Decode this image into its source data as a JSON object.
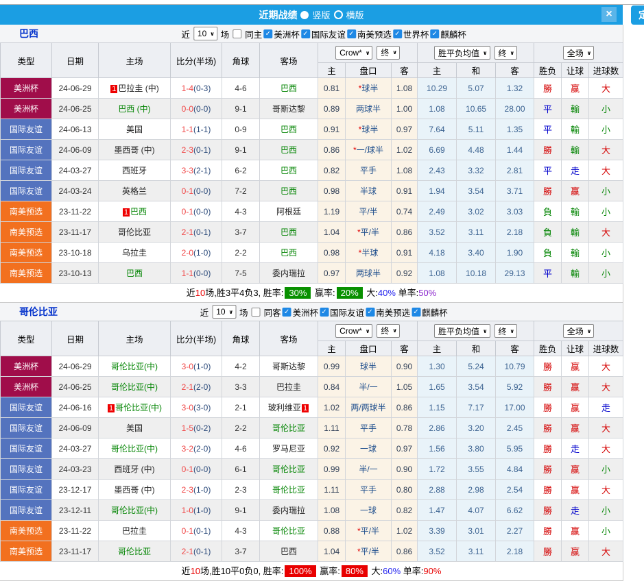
{
  "title_bar": {
    "title": "近期战绩",
    "radio_vertical": "竖版",
    "radio_horizontal": "横版",
    "close": "×"
  },
  "pin_button": "定",
  "filter": {
    "near": "近",
    "count": "10",
    "games": "场"
  },
  "table": {
    "col_headers": [
      "类型",
      "日期",
      "主场",
      "比分(半场)",
      "角球",
      "客场"
    ],
    "sub_headers": [
      "主",
      "盘口",
      "客",
      "主",
      "和",
      "客",
      "胜负",
      "让球",
      "进球数"
    ],
    "selects": {
      "company": "Crow*",
      "final1": "终",
      "avg": "胜平负均值",
      "final2": "终",
      "scope": "全场"
    }
  },
  "colors": {
    "type": {
      "美洲杯": "#a00d4a",
      "国际友谊": "#5473be",
      "南美预选": "#f2701f"
    },
    "accent_blue": "#1b9ee3"
  },
  "sections": [
    {
      "team": "巴西",
      "same_label": "同主",
      "cups": [
        "美洲杯",
        "国际友谊",
        "南美预选",
        "世界杯",
        "麒麟杯"
      ],
      "rows": [
        {
          "type": "美洲杯",
          "date": "24-06-29",
          "home": "巴拉圭 (中)",
          "hg": false,
          "hr": "before",
          "score": "1-4",
          "half": "(0-3)",
          "cor": "4-6",
          "away": "巴西",
          "ag": true,
          "ar": null,
          "h": "0.81",
          "star": true,
          "hcp": "球半",
          "a": "1.08",
          "av": [
            "10.29",
            "5.07",
            "1.32"
          ],
          "res": [
            "勝",
            "r"
          ],
          "bet": [
            "赢",
            "r"
          ],
          "big": [
            "大",
            "r"
          ]
        },
        {
          "type": "美洲杯",
          "date": "24-06-25",
          "home": "巴西 (中)",
          "hg": true,
          "hr": null,
          "score": "0-0",
          "half": "(0-0)",
          "cor": "9-1",
          "away": "哥斯达黎",
          "ag": false,
          "ar": null,
          "h": "0.89",
          "star": false,
          "hcp": "两球半",
          "a": "1.00",
          "av": [
            "1.08",
            "10.65",
            "28.00"
          ],
          "res": [
            "平",
            "b"
          ],
          "bet": [
            "輸",
            "g"
          ],
          "big": [
            "小",
            "g"
          ]
        },
        {
          "type": "国际友谊",
          "date": "24-06-13",
          "home": "美国",
          "hg": false,
          "hr": null,
          "score": "1-1",
          "half": "(1-1)",
          "cor": "0-9",
          "away": "巴西",
          "ag": true,
          "ar": null,
          "h": "0.91",
          "star": true,
          "hcp": "球半",
          "a": "0.97",
          "av": [
            "7.64",
            "5.11",
            "1.35"
          ],
          "res": [
            "平",
            "b"
          ],
          "bet": [
            "輸",
            "g"
          ],
          "big": [
            "小",
            "g"
          ]
        },
        {
          "type": "国际友谊",
          "date": "24-06-09",
          "home": "墨西哥 (中)",
          "hg": false,
          "hr": null,
          "score": "2-3",
          "half": "(0-1)",
          "cor": "9-1",
          "away": "巴西",
          "ag": true,
          "ar": null,
          "h": "0.86",
          "star": true,
          "hcp": "一/球半",
          "a": "1.02",
          "av": [
            "6.69",
            "4.48",
            "1.44"
          ],
          "res": [
            "勝",
            "r"
          ],
          "bet": [
            "輸",
            "g"
          ],
          "big": [
            "大",
            "r"
          ]
        },
        {
          "type": "国际友谊",
          "date": "24-03-27",
          "home": "西班牙",
          "hg": false,
          "hr": null,
          "score": "3-3",
          "half": "(2-1)",
          "cor": "6-2",
          "away": "巴西",
          "ag": true,
          "ar": null,
          "h": "0.82",
          "star": false,
          "hcp": "平手",
          "a": "1.08",
          "av": [
            "2.43",
            "3.32",
            "2.81"
          ],
          "res": [
            "平",
            "b"
          ],
          "bet": [
            "走",
            "b"
          ],
          "big": [
            "大",
            "r"
          ]
        },
        {
          "type": "国际友谊",
          "date": "24-03-24",
          "home": "英格兰",
          "hg": false,
          "hr": null,
          "score": "0-1",
          "half": "(0-0)",
          "cor": "7-2",
          "away": "巴西",
          "ag": true,
          "ar": null,
          "h": "0.98",
          "star": false,
          "hcp": "半球",
          "a": "0.91",
          "av": [
            "1.94",
            "3.54",
            "3.71"
          ],
          "res": [
            "勝",
            "r"
          ],
          "bet": [
            "赢",
            "r"
          ],
          "big": [
            "小",
            "g"
          ]
        },
        {
          "type": "南美预选",
          "date": "23-11-22",
          "home": "巴西",
          "hg": true,
          "hr": "before",
          "score": "0-1",
          "half": "(0-0)",
          "cor": "4-3",
          "away": "阿根廷",
          "ag": false,
          "ar": null,
          "h": "1.19",
          "star": false,
          "hcp": "平/半",
          "a": "0.74",
          "av": [
            "2.49",
            "3.02",
            "3.03"
          ],
          "res": [
            "負",
            "g"
          ],
          "bet": [
            "輸",
            "g"
          ],
          "big": [
            "小",
            "g"
          ]
        },
        {
          "type": "南美预选",
          "date": "23-11-17",
          "home": "哥伦比亚",
          "hg": false,
          "hr": null,
          "score": "2-1",
          "half": "(0-1)",
          "cor": "3-7",
          "away": "巴西",
          "ag": true,
          "ar": null,
          "h": "1.04",
          "star": true,
          "hcp": "平/半",
          "a": "0.86",
          "av": [
            "3.52",
            "3.11",
            "2.18"
          ],
          "res": [
            "負",
            "g"
          ],
          "bet": [
            "輸",
            "g"
          ],
          "big": [
            "大",
            "r"
          ]
        },
        {
          "type": "南美预选",
          "date": "23-10-18",
          "home": "乌拉圭",
          "hg": false,
          "hr": null,
          "score": "2-0",
          "half": "(1-0)",
          "cor": "2-2",
          "away": "巴西",
          "ag": true,
          "ar": null,
          "h": "0.98",
          "star": true,
          "hcp": "半球",
          "a": "0.91",
          "av": [
            "4.18",
            "3.40",
            "1.90"
          ],
          "res": [
            "負",
            "g"
          ],
          "bet": [
            "輸",
            "g"
          ],
          "big": [
            "小",
            "g"
          ]
        },
        {
          "type": "南美预选",
          "date": "23-10-13",
          "home": "巴西",
          "hg": true,
          "hr": null,
          "score": "1-1",
          "half": "(0-0)",
          "cor": "7-5",
          "away": "委内瑞拉",
          "ag": false,
          "ar": null,
          "h": "0.97",
          "star": false,
          "hcp": "两球半",
          "a": "0.92",
          "av": [
            "1.08",
            "10.18",
            "29.13"
          ],
          "res": [
            "平",
            "b"
          ],
          "bet": [
            "輸",
            "g"
          ],
          "big": [
            "小",
            "g"
          ]
        }
      ],
      "summary": [
        {
          "t": "近"
        },
        {
          "t": "10",
          "c": "e"
        },
        {
          "t": "场,胜3平4负3, 胜率:"
        },
        {
          "t": "30%",
          "badge": "g"
        },
        {
          "t": " 赢率:"
        },
        {
          "t": "20%",
          "badge": "g"
        },
        {
          "t": " 大:"
        },
        {
          "t": "40%",
          "c": "bl"
        },
        {
          "t": " 单率:"
        },
        {
          "t": "50%",
          "c": "p"
        }
      ]
    },
    {
      "team": "哥伦比亚",
      "same_label": "同客",
      "cups": [
        "美洲杯",
        "国际友谊",
        "南美预选",
        "麒麟杯"
      ],
      "rows": [
        {
          "type": "美洲杯",
          "date": "24-06-29",
          "home": "哥伦比亚(中)",
          "hg": true,
          "hr": null,
          "score": "3-0",
          "half": "(1-0)",
          "cor": "4-2",
          "away": "哥斯达黎",
          "ag": false,
          "ar": null,
          "h": "0.99",
          "star": false,
          "hcp": "球半",
          "a": "0.90",
          "av": [
            "1.30",
            "5.24",
            "10.79"
          ],
          "res": [
            "勝",
            "r"
          ],
          "bet": [
            "赢",
            "r"
          ],
          "big": [
            "大",
            "r"
          ]
        },
        {
          "type": "美洲杯",
          "date": "24-06-25",
          "home": "哥伦比亚(中)",
          "hg": true,
          "hr": null,
          "score": "2-1",
          "half": "(2-0)",
          "cor": "3-3",
          "away": "巴拉圭",
          "ag": false,
          "ar": null,
          "h": "0.84",
          "star": false,
          "hcp": "半/一",
          "a": "1.05",
          "av": [
            "1.65",
            "3.54",
            "5.92"
          ],
          "res": [
            "勝",
            "r"
          ],
          "bet": [
            "赢",
            "r"
          ],
          "big": [
            "大",
            "r"
          ]
        },
        {
          "type": "国际友谊",
          "date": "24-06-16",
          "home": "哥伦比亚(中)",
          "hg": true,
          "hr": "before",
          "score": "3-0",
          "half": "(3-0)",
          "cor": "2-1",
          "away": "玻利维亚",
          "ag": false,
          "ar": "after",
          "h": "1.02",
          "star": false,
          "hcp": "两/两球半",
          "a": "0.86",
          "av": [
            "1.15",
            "7.17",
            "17.00"
          ],
          "res": [
            "勝",
            "r"
          ],
          "bet": [
            "赢",
            "r"
          ],
          "big": [
            "走",
            "b"
          ]
        },
        {
          "type": "国际友谊",
          "date": "24-06-09",
          "home": "美国",
          "hg": false,
          "hr": null,
          "score": "1-5",
          "half": "(0-2)",
          "cor": "2-2",
          "away": "哥伦比亚",
          "ag": true,
          "ar": null,
          "h": "1.11",
          "star": false,
          "hcp": "平手",
          "a": "0.78",
          "av": [
            "2.86",
            "3.20",
            "2.45"
          ],
          "res": [
            "勝",
            "r"
          ],
          "bet": [
            "赢",
            "r"
          ],
          "big": [
            "大",
            "r"
          ]
        },
        {
          "type": "国际友谊",
          "date": "24-03-27",
          "home": "哥伦比亚(中)",
          "hg": true,
          "hr": null,
          "score": "3-2",
          "half": "(2-0)",
          "cor": "4-6",
          "away": "罗马尼亚",
          "ag": false,
          "ar": null,
          "h": "0.92",
          "star": false,
          "hcp": "一球",
          "a": "0.97",
          "av": [
            "1.56",
            "3.80",
            "5.95"
          ],
          "res": [
            "勝",
            "r"
          ],
          "bet": [
            "走",
            "b"
          ],
          "big": [
            "大",
            "r"
          ]
        },
        {
          "type": "国际友谊",
          "date": "24-03-23",
          "home": "西班牙 (中)",
          "hg": false,
          "hr": null,
          "score": "0-1",
          "half": "(0-0)",
          "cor": "6-1",
          "away": "哥伦比亚",
          "ag": true,
          "ar": null,
          "h": "0.99",
          "star": false,
          "hcp": "半/一",
          "a": "0.90",
          "av": [
            "1.72",
            "3.55",
            "4.84"
          ],
          "res": [
            "勝",
            "r"
          ],
          "bet": [
            "赢",
            "r"
          ],
          "big": [
            "小",
            "g"
          ]
        },
        {
          "type": "国际友谊",
          "date": "23-12-17",
          "home": "墨西哥 (中)",
          "hg": false,
          "hr": null,
          "score": "2-3",
          "half": "(1-0)",
          "cor": "2-3",
          "away": "哥伦比亚",
          "ag": true,
          "ar": null,
          "h": "1.11",
          "star": false,
          "hcp": "平手",
          "a": "0.80",
          "av": [
            "2.88",
            "2.98",
            "2.54"
          ],
          "res": [
            "勝",
            "r"
          ],
          "bet": [
            "赢",
            "r"
          ],
          "big": [
            "大",
            "r"
          ]
        },
        {
          "type": "国际友谊",
          "date": "23-12-11",
          "home": "哥伦比亚(中)",
          "hg": true,
          "hr": null,
          "score": "1-0",
          "half": "(1-0)",
          "cor": "9-1",
          "away": "委内瑞拉",
          "ag": false,
          "ar": null,
          "h": "1.08",
          "star": false,
          "hcp": "一球",
          "a": "0.82",
          "av": [
            "1.47",
            "4.07",
            "6.62"
          ],
          "res": [
            "勝",
            "r"
          ],
          "bet": [
            "走",
            "b"
          ],
          "big": [
            "小",
            "g"
          ]
        },
        {
          "type": "南美预选",
          "date": "23-11-22",
          "home": "巴拉圭",
          "hg": false,
          "hr": null,
          "score": "0-1",
          "half": "(0-1)",
          "cor": "4-3",
          "away": "哥伦比亚",
          "ag": true,
          "ar": null,
          "h": "0.88",
          "star": true,
          "hcp": "平/半",
          "a": "1.02",
          "av": [
            "3.39",
            "3.01",
            "2.27"
          ],
          "res": [
            "勝",
            "r"
          ],
          "bet": [
            "赢",
            "r"
          ],
          "big": [
            "小",
            "g"
          ]
        },
        {
          "type": "南美预选",
          "date": "23-11-17",
          "home": "哥伦比亚",
          "hg": true,
          "hr": null,
          "score": "2-1",
          "half": "(0-1)",
          "cor": "3-7",
          "away": "巴西",
          "ag": false,
          "ar": null,
          "h": "1.04",
          "star": true,
          "hcp": "平/半",
          "a": "0.86",
          "av": [
            "3.52",
            "3.11",
            "2.18"
          ],
          "res": [
            "勝",
            "r"
          ],
          "bet": [
            "赢",
            "r"
          ],
          "big": [
            "大",
            "r"
          ]
        }
      ],
      "summary": [
        {
          "t": "近"
        },
        {
          "t": "10",
          "c": "e"
        },
        {
          "t": "场,胜10平0负0, 胜率:"
        },
        {
          "t": "100%",
          "badge": "r"
        },
        {
          "t": " 赢率:"
        },
        {
          "t": "80%",
          "badge": "r"
        },
        {
          "t": " 大:"
        },
        {
          "t": "60%",
          "c": "bl"
        },
        {
          "t": " 单率:"
        },
        {
          "t": "90%",
          "c": "e"
        }
      ]
    }
  ]
}
